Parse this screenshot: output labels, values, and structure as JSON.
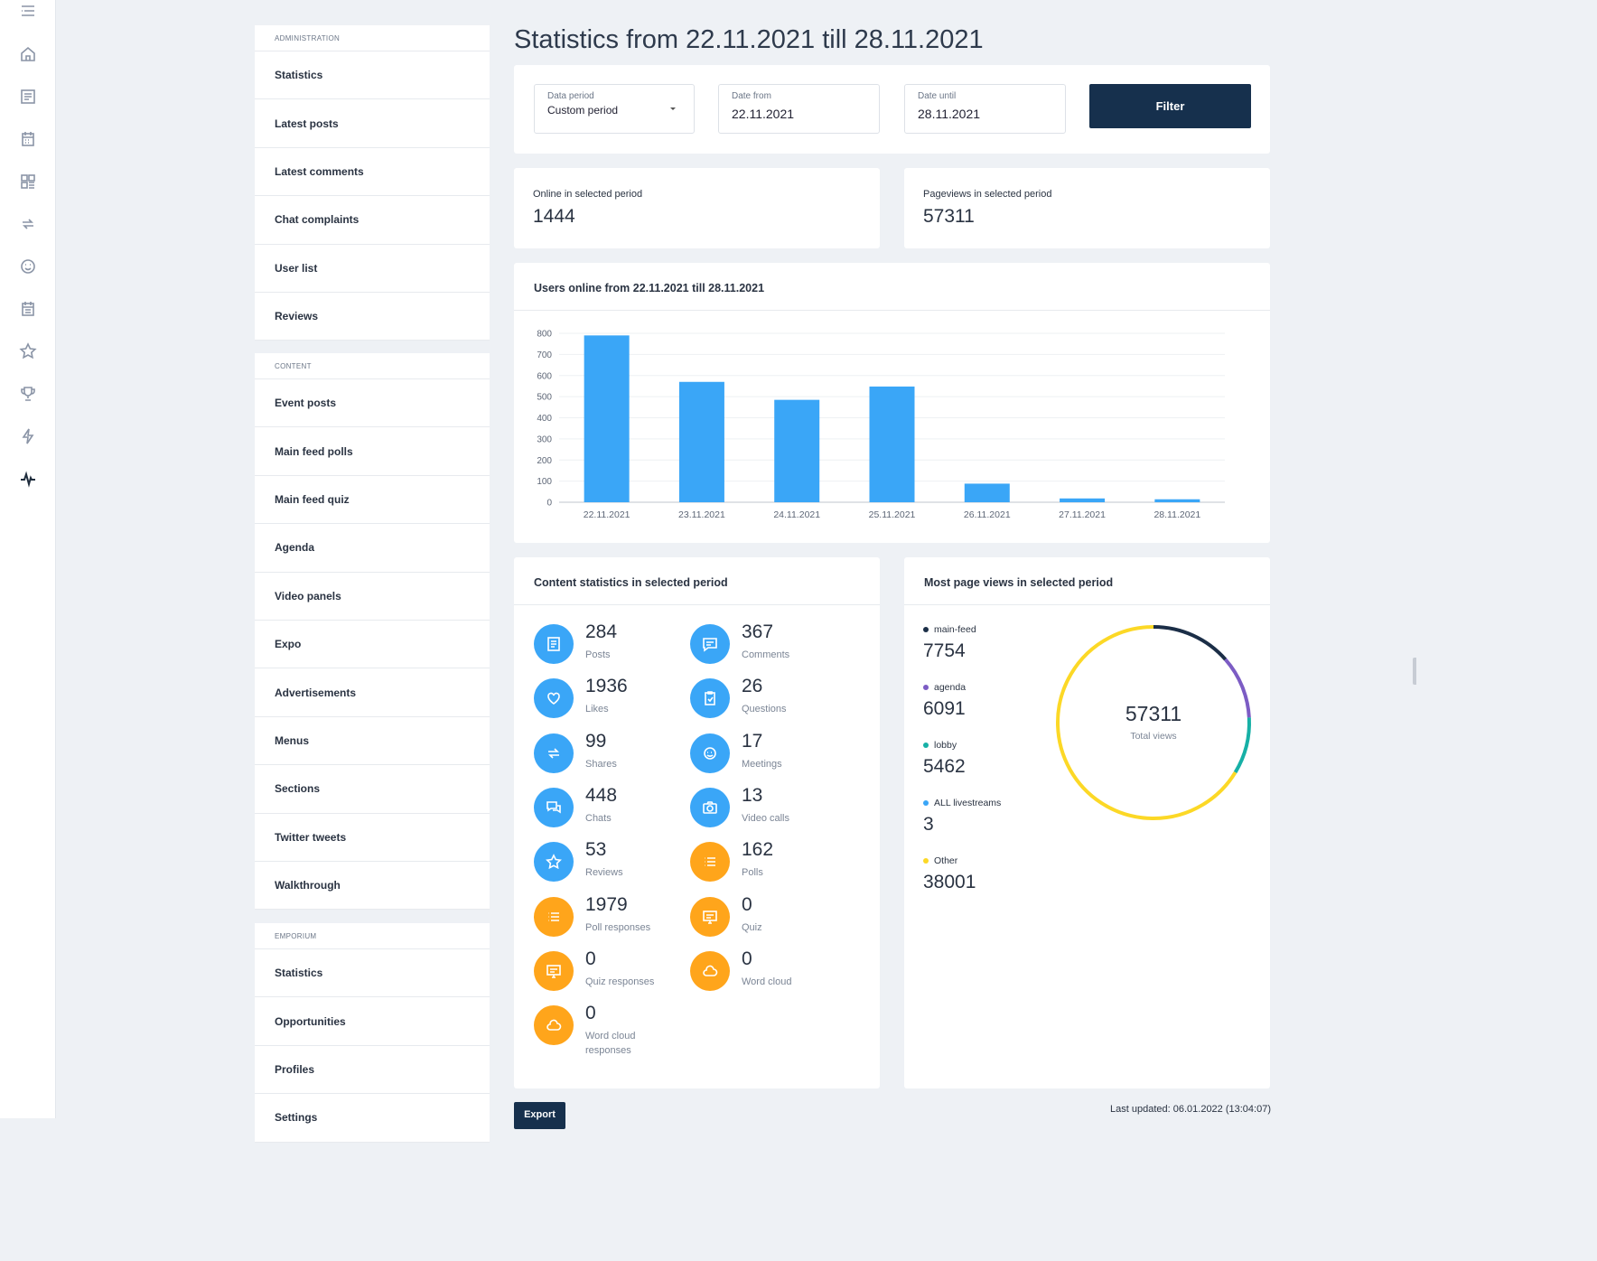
{
  "rail": {
    "icons": [
      "menu-icon",
      "home-icon",
      "feed-icon",
      "calendar-icon",
      "grid-icon",
      "share-icon",
      "chat-icon",
      "schedule-icon",
      "star-icon",
      "trophy-icon",
      "flash-icon",
      "activity-icon"
    ]
  },
  "sidebar": {
    "sections": [
      {
        "heading": "ADMINISTRATION",
        "items": [
          "Statistics",
          "Latest posts",
          "Latest comments",
          "Chat complaints",
          "User list",
          "Reviews"
        ]
      },
      {
        "heading": "CONTENT",
        "items": [
          "Event posts",
          "Main feed polls",
          "Main feed quiz",
          "Agenda",
          "Video panels",
          "Expo",
          "Advertisements",
          "Menus",
          "Sections",
          "Twitter tweets",
          "Walkthrough"
        ]
      },
      {
        "heading": "EMPORIUM",
        "items": [
          "Statistics",
          "Opportunities",
          "Profiles",
          "Settings"
        ]
      }
    ]
  },
  "page": {
    "title": "Statistics from 22.11.2021 till 28.11.2021"
  },
  "filter": {
    "period_label": "Data period",
    "period_value": "Custom period",
    "from_label": "Date from",
    "from_value": "22.11.2021",
    "until_label": "Date until",
    "until_value": "28.11.2021",
    "button": "Filter"
  },
  "kpis": {
    "online_label": "Online in selected period",
    "online_value": "1444",
    "pageviews_label": "Pageviews in selected period",
    "pageviews_value": "57311"
  },
  "users_chart": {
    "title": "Users online from 22.11.2021 till 28.11.2021"
  },
  "chart_data": {
    "type": "bar",
    "title": "Users online from 22.11.2021 till 28.11.2021",
    "categories": [
      "22.11.2021",
      "23.11.2021",
      "24.11.2021",
      "25.11.2021",
      "26.11.2021",
      "27.11.2021",
      "28.11.2021"
    ],
    "values": [
      790,
      570,
      485,
      548,
      88,
      18,
      14
    ],
    "yticks": [
      "0",
      "100",
      "200",
      "300",
      "400",
      "500",
      "600",
      "700",
      "800"
    ],
    "ylim": [
      0,
      800
    ],
    "color": "#3aa6f7",
    "grid": true
  },
  "content_stats": {
    "title": "Content statistics in selected period",
    "items": [
      {
        "value": "284",
        "label": "Posts",
        "color": "blue",
        "icon": "posts-icon"
      },
      {
        "value": "367",
        "label": "Comments",
        "color": "blue",
        "icon": "comments-icon"
      },
      {
        "value": "1936",
        "label": "Likes",
        "color": "blue",
        "icon": "heart-icon"
      },
      {
        "value": "26",
        "label": "Questions",
        "color": "blue",
        "icon": "question-clipboard-icon"
      },
      {
        "value": "99",
        "label": "Shares",
        "color": "blue",
        "icon": "share-icon"
      },
      {
        "value": "17",
        "label": "Meetings",
        "color": "blue",
        "icon": "meetings-icon"
      },
      {
        "value": "448",
        "label": "Chats",
        "color": "blue",
        "icon": "chats-icon"
      },
      {
        "value": "13",
        "label": "Video calls",
        "color": "blue",
        "icon": "camera-icon"
      },
      {
        "value": "53",
        "label": "Reviews",
        "color": "blue",
        "icon": "star-icon"
      },
      {
        "value": "162",
        "label": "Polls",
        "color": "orange",
        "icon": "list-icon"
      },
      {
        "value": "1979",
        "label": "Poll responses",
        "color": "orange",
        "icon": "list-icon"
      },
      {
        "value": "0",
        "label": "Quiz",
        "color": "orange",
        "icon": "monitor-icon"
      },
      {
        "value": "0",
        "label": "Quiz responses",
        "color": "orange",
        "icon": "monitor-icon"
      },
      {
        "value": "0",
        "label": "Word cloud",
        "color": "orange",
        "icon": "cloud-icon"
      },
      {
        "value": "0",
        "label": "Word cloud responses",
        "color": "orange",
        "icon": "cloud-icon"
      }
    ]
  },
  "page_views": {
    "title": "Most page views in selected period",
    "total": "57311",
    "total_label": "Total views",
    "legend": [
      {
        "name": "main-feed",
        "value": "7754",
        "color": "#1b2e47"
      },
      {
        "name": "agenda",
        "value": "6091",
        "color": "#7c5cc4"
      },
      {
        "name": "lobby",
        "value": "5462",
        "color": "#17b0a6"
      },
      {
        "name": "ALL livestreams",
        "value": "3",
        "color": "#3aa6f7"
      },
      {
        "name": "Other",
        "value": "38001",
        "color": "#fcd826"
      }
    ]
  },
  "footer": {
    "export": "Export",
    "updated": "Last updated: 06.01.2022 (13:04:07)"
  }
}
